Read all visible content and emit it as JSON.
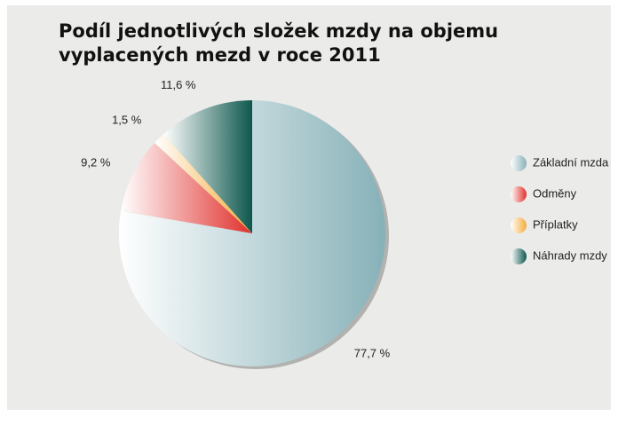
{
  "chart_data": {
    "type": "pie",
    "title": "Podíl jednotlivých složek mzdy na objemu vyplacených mezd v roce 2011",
    "categories": [
      "Základní mzda",
      "Odměny",
      "Příplatky",
      "Náhrady mzdy"
    ],
    "values": [
      77.7,
      9.2,
      1.5,
      11.6
    ],
    "value_labels": [
      "77,7 %",
      "9,2 %",
      "1,5 %",
      "11,6 %"
    ],
    "colors": [
      "#86b1b8",
      "#e0302c",
      "#f4ac3c",
      "#0d574d"
    ],
    "legend": "right"
  }
}
